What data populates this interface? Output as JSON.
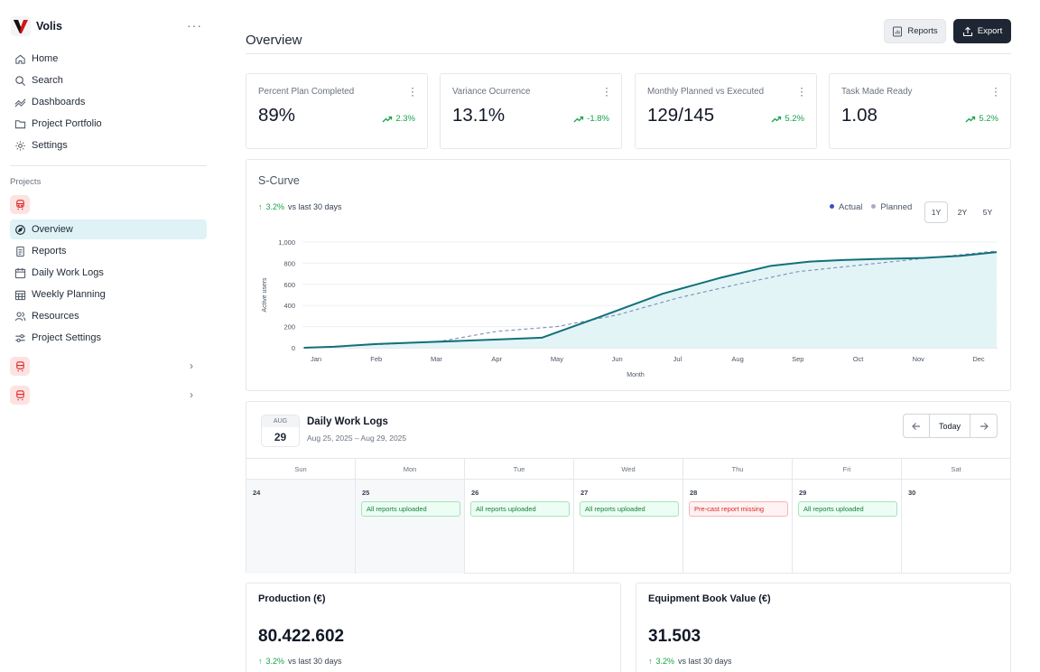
{
  "app": {
    "name": "Volis",
    "more_label": "···"
  },
  "nav": {
    "main": [
      {
        "label": "Home",
        "icon": "home-icon"
      },
      {
        "label": "Search",
        "icon": "search-icon"
      },
      {
        "label": "Dashboards",
        "icon": "trend-icon"
      },
      {
        "label": "Project Portfolio",
        "icon": "folder-icon"
      },
      {
        "label": "Settings",
        "icon": "gear-icon"
      }
    ],
    "section_label": "Projects",
    "project": [
      {
        "label": "Overview",
        "icon": "compass-icon"
      },
      {
        "label": "Reports",
        "icon": "document-icon"
      },
      {
        "label": "Daily Work Logs",
        "icon": "calendar-icon"
      },
      {
        "label": "Weekly Planning",
        "icon": "calendar-grid-icon"
      },
      {
        "label": "Resources",
        "icon": "users-icon"
      },
      {
        "label": "Project Settings",
        "icon": "sliders-icon"
      }
    ]
  },
  "header": {
    "title": "Overview",
    "reports_label": "Reports",
    "export_label": "Export"
  },
  "kpis": [
    {
      "title": "Percent Plan Completed",
      "value": "89%",
      "trend": "2.3%"
    },
    {
      "title": "Variance Ocurrence",
      "value": "13.1%",
      "trend": "-1.8%"
    },
    {
      "title": "Monthly Planned vs Executed",
      "value": "129/145",
      "trend": "5.2%"
    },
    {
      "title": "Task Made Ready",
      "value": "1.08",
      "trend": "5.2%"
    }
  ],
  "scurve": {
    "title": "S-Curve",
    "delta": "3.2%",
    "delta_note": "vs last 30 days",
    "legend_actual": "Actual",
    "legend_planned": "Planned",
    "ranges": [
      "1Y",
      "2Y",
      "5Y"
    ]
  },
  "chart_data": {
    "type": "line",
    "title": "S-Curve",
    "xlabel": "Month",
    "ylabel": "Active users",
    "categories": [
      "Jan",
      "Feb",
      "Mar",
      "Apr",
      "May",
      "Jun",
      "Jul",
      "Aug",
      "Sep",
      "Oct",
      "Nov",
      "Dec"
    ],
    "yticks": [
      "0",
      "200",
      "400",
      "600",
      "800",
      "1,000"
    ],
    "ylim": [
      0,
      1000
    ],
    "series": [
      {
        "name": "Actual",
        "x": [
          -0.2,
          0.3,
          1.0,
          1.7,
          2.4,
          3.1,
          3.75,
          4.75,
          5.75,
          6.7,
          7.55,
          8.2,
          8.75,
          9.3,
          10.1,
          10.7,
          11.3
        ],
        "values": [
          0,
          10,
          35,
          50,
          65,
          80,
          95,
          300,
          510,
          660,
          775,
          815,
          830,
          840,
          850,
          870,
          905
        ]
      },
      {
        "name": "Planned",
        "x": [
          -0.2,
          1.0,
          2.0,
          3.0,
          4.0,
          5.0,
          6.0,
          7.0,
          8.0,
          9.0,
          10.0,
          11.3
        ],
        "values": [
          0,
          30,
          55,
          155,
          200,
          310,
          470,
          600,
          720,
          780,
          840,
          915
        ]
      }
    ]
  },
  "logs": {
    "month": "AUG",
    "day": "29",
    "title": "Daily Work Logs",
    "range": "Aug 25, 2025 – Aug 29, 2025",
    "today_label": "Today",
    "days": [
      {
        "name": "Sun",
        "num": "24",
        "status": "",
        "kind": ""
      },
      {
        "name": "Mon",
        "num": "25",
        "status": "All reports uploaded",
        "kind": "ok"
      },
      {
        "name": "Tue",
        "num": "26",
        "status": "All reports uploaded",
        "kind": "ok"
      },
      {
        "name": "Wed",
        "num": "27",
        "status": "All reports uploaded",
        "kind": "ok"
      },
      {
        "name": "Thu",
        "num": "28",
        "status": "Pre-cast report missing",
        "kind": "bad"
      },
      {
        "name": "Fri",
        "num": "29",
        "status": "All reports uploaded",
        "kind": "ok"
      },
      {
        "name": "Sat",
        "num": "30",
        "status": "",
        "kind": ""
      }
    ]
  },
  "production": {
    "title": "Production (€)",
    "value": "80.422.602",
    "delta": "3.2%",
    "delta_note": "vs last 30 days"
  },
  "equipment": {
    "title": "Equipment Book Value (€)",
    "value": "31.503",
    "delta": "3.2%",
    "delta_note": "vs last 30 days"
  },
  "colors": {
    "accent": "#12707a",
    "planned": "#7d8fb5",
    "area": "#e3f4f6",
    "up": "#16a34a",
    "active_nav": "#dff2f6"
  }
}
